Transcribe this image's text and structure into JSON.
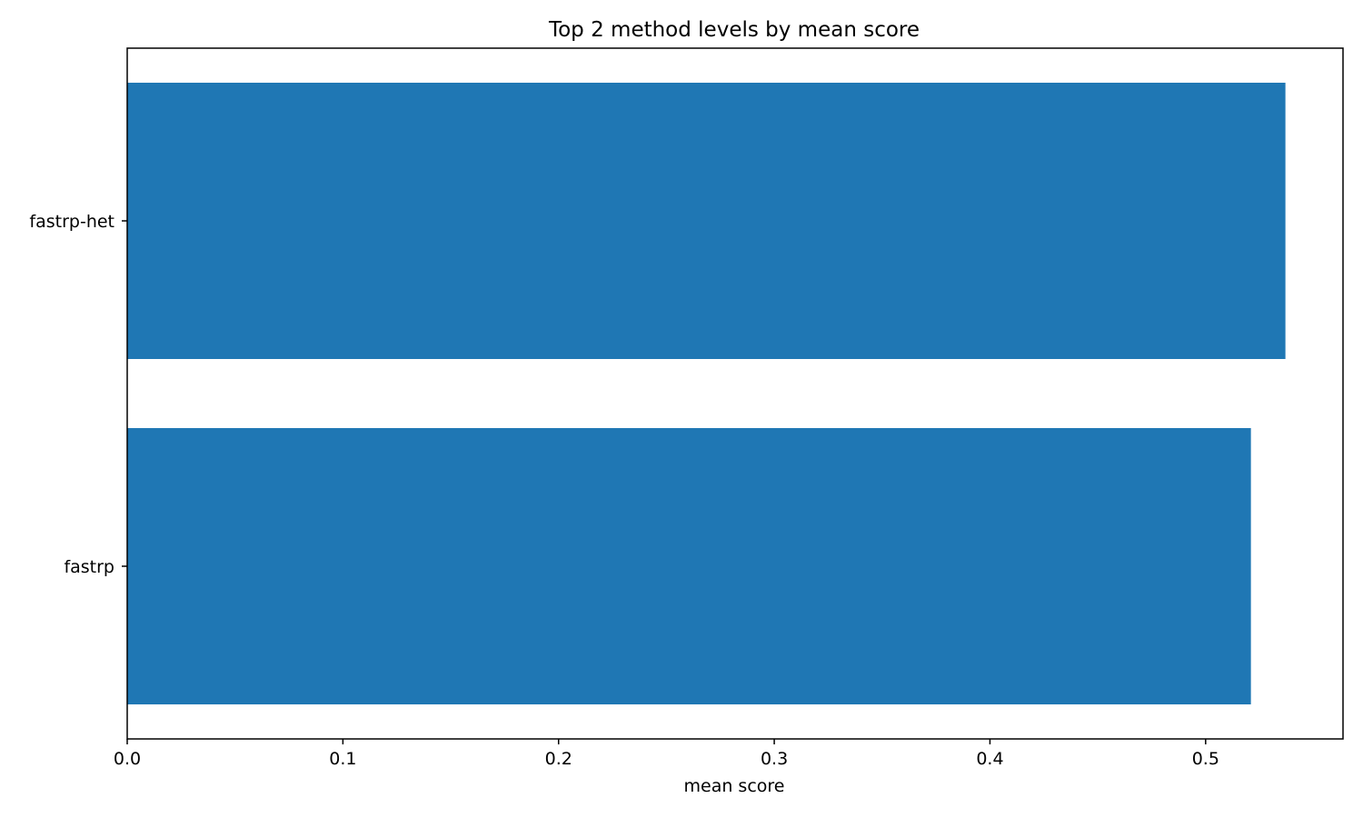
{
  "chart_data": {
    "type": "bar",
    "orientation": "horizontal",
    "title": "Top 2 method levels by mean score",
    "xlabel": "mean score",
    "ylabel": "",
    "categories": [
      "fastrp-het",
      "fastrp"
    ],
    "values": [
      0.537,
      0.521
    ],
    "xlim": [
      0.0,
      0.5637
    ],
    "x_ticks": [
      0.0,
      0.1,
      0.2,
      0.3,
      0.4,
      0.5
    ],
    "x_tick_labels": [
      "0.0",
      "0.1",
      "0.2",
      "0.3",
      "0.4",
      "0.5"
    ],
    "grid": false,
    "legend": "none",
    "bar_color": "#1f77b4"
  }
}
